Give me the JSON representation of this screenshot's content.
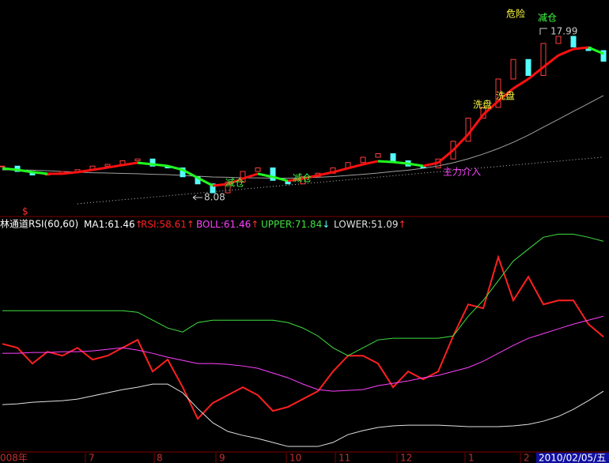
{
  "chart_data": [
    {
      "type": "candlestick",
      "ylim": [
        7.6,
        18.8
      ],
      "up_color": "#ff3c3c",
      "down_color": "#54fcfc",
      "close": [
        9.9,
        9.6,
        9.4,
        9.5,
        9.6,
        9.7,
        9.9,
        10.0,
        10.2,
        10.3,
        9.9,
        9.8,
        9.3,
        8.9,
        8.4,
        9.0,
        9.6,
        9.8,
        9.1,
        8.9,
        9.3,
        9.5,
        9.8,
        10.1,
        10.4,
        10.6,
        10.2,
        9.9,
        9.8,
        10.3,
        11.3,
        12.6,
        13.2,
        14.8,
        15.9,
        15.0,
        16.8,
        17.2,
        16.6,
        16.4,
        15.8
      ],
      "ma": {
        "up_color": "#ff1010",
        "down_color": "#20ff20",
        "values": [
          9.78,
          9.69,
          9.56,
          9.47,
          9.47,
          9.56,
          9.69,
          9.82,
          9.96,
          10.09,
          10.0,
          9.91,
          9.69,
          9.24,
          8.8,
          8.89,
          9.2,
          9.47,
          9.29,
          9.07,
          9.2,
          9.38,
          9.56,
          9.78,
          10.0,
          10.18,
          10.13,
          10.04,
          9.91,
          10.09,
          10.8,
          11.69,
          12.8,
          13.56,
          14.27,
          14.8,
          15.47,
          16.13,
          16.49,
          16.58,
          16.22
        ]
      },
      "long_ma": {
        "color": "#a0a0a0",
        "values": [
          9.69,
          9.69,
          9.67,
          9.64,
          9.6,
          9.56,
          9.53,
          9.51,
          9.49,
          9.47,
          9.44,
          9.42,
          9.38,
          9.33,
          9.29,
          9.27,
          9.24,
          9.24,
          9.22,
          9.22,
          9.24,
          9.27,
          9.31,
          9.38,
          9.44,
          9.51,
          9.6,
          9.67,
          9.78,
          9.91,
          10.09,
          10.31,
          10.58,
          10.89,
          11.24,
          11.64,
          12.09,
          12.53,
          12.98,
          13.42,
          13.87
        ]
      },
      "trend": {
        "color": "#c0c0c0",
        "values": [
          null,
          null,
          null,
          null,
          null,
          7.78,
          7.86,
          7.93,
          8.01,
          8.08,
          8.16,
          8.23,
          8.31,
          8.38,
          8.46,
          8.53,
          8.61,
          8.68,
          8.76,
          8.83,
          8.91,
          8.98,
          9.06,
          9.13,
          9.21,
          9.28,
          9.36,
          9.43,
          9.51,
          9.58,
          9.66,
          9.73,
          9.81,
          9.88,
          9.96,
          10.03,
          10.11,
          10.18,
          10.26,
          10.33,
          10.41
        ]
      },
      "annotations": [
        "危险",
        "减仓",
        "17.99",
        "洗盘",
        "洗盘",
        "减仓",
        "减仓",
        "主力介入",
        "8.08"
      ]
    },
    {
      "type": "line",
      "title": "林通道RSI(60,60)",
      "marker": "$",
      "ylim": [
        42.9,
        73.3
      ],
      "indicator": {
        "label": "MA1:61.46",
        "arrow": "↑",
        "color": "#ffffff",
        "arrow_color": "#ff3030"
      },
      "series": [
        {
          "name": "RSI:58.61",
          "arrow": "↑",
          "color": "#ff2020",
          "arrow_color": "#ff3030",
          "values": [
            57.64,
            57.1,
            54.91,
            56.55,
            56.0,
            57.1,
            55.46,
            56.0,
            57.1,
            58.19,
            53.82,
            55.46,
            51.64,
            47.27,
            49.45,
            50.54,
            51.64,
            50.54,
            48.36,
            48.91,
            50.0,
            51.09,
            53.82,
            56.0,
            56.0,
            54.91,
            51.64,
            53.82,
            52.73,
            53.82,
            58.73,
            63.1,
            62.56,
            69.65,
            63.65,
            66.92,
            63.1,
            63.65,
            63.65,
            60.37,
            58.61
          ]
        },
        {
          "name": "BOLL:61.46",
          "arrow": "↑",
          "color": "#ff40ff",
          "arrow_color": "#ff3030",
          "values": [
            56.33,
            56.33,
            56.44,
            56.44,
            56.55,
            56.55,
            56.66,
            56.88,
            57.1,
            56.77,
            56.33,
            55.79,
            55.35,
            54.91,
            54.91,
            54.8,
            54.58,
            54.26,
            53.6,
            52.95,
            52.07,
            51.31,
            51.09,
            51.2,
            51.31,
            51.85,
            52.18,
            52.51,
            52.95,
            53.27,
            53.82,
            54.37,
            55.24,
            56.33,
            57.42,
            58.41,
            59.06,
            59.72,
            60.37,
            60.92,
            61.46
          ]
        },
        {
          "name": "UPPER:71.84",
          "arrow": "↓",
          "color": "#40e040",
          "arrow_color": "#54fcfc",
          "values": [
            62.23,
            62.23,
            62.23,
            62.23,
            62.23,
            62.23,
            62.23,
            62.23,
            62.23,
            62.01,
            60.92,
            59.83,
            59.28,
            60.59,
            60.92,
            60.92,
            60.92,
            60.92,
            60.92,
            60.59,
            59.83,
            58.73,
            57.1,
            56.0,
            57.1,
            58.19,
            58.41,
            58.41,
            58.41,
            58.41,
            58.73,
            61.46,
            63.65,
            66.38,
            69.11,
            70.75,
            72.39,
            72.82,
            72.82,
            72.39,
            71.84
          ]
        },
        {
          "name": "LOWER:51.09",
          "arrow": "↑",
          "color": "#e0e0e0",
          "arrow_color": "#ff3030",
          "values": [
            49.23,
            49.34,
            49.56,
            49.67,
            49.78,
            50.0,
            50.43,
            50.87,
            51.31,
            51.64,
            52.07,
            52.07,
            50.87,
            48.69,
            46.72,
            45.52,
            44.97,
            44.54,
            43.99,
            43.44,
            43.44,
            43.44,
            43.99,
            45.08,
            45.63,
            46.07,
            46.29,
            46.39,
            46.39,
            46.39,
            46.29,
            46.18,
            46.18,
            46.18,
            46.29,
            46.5,
            46.94,
            47.6,
            48.58,
            49.78,
            51.09
          ]
        }
      ]
    }
  ],
  "x_axis": {
    "labels": [
      "008年",
      "7",
      "8",
      "9",
      "10",
      "11",
      "12",
      "1",
      "2"
    ],
    "date": "2010/02/05/五"
  }
}
